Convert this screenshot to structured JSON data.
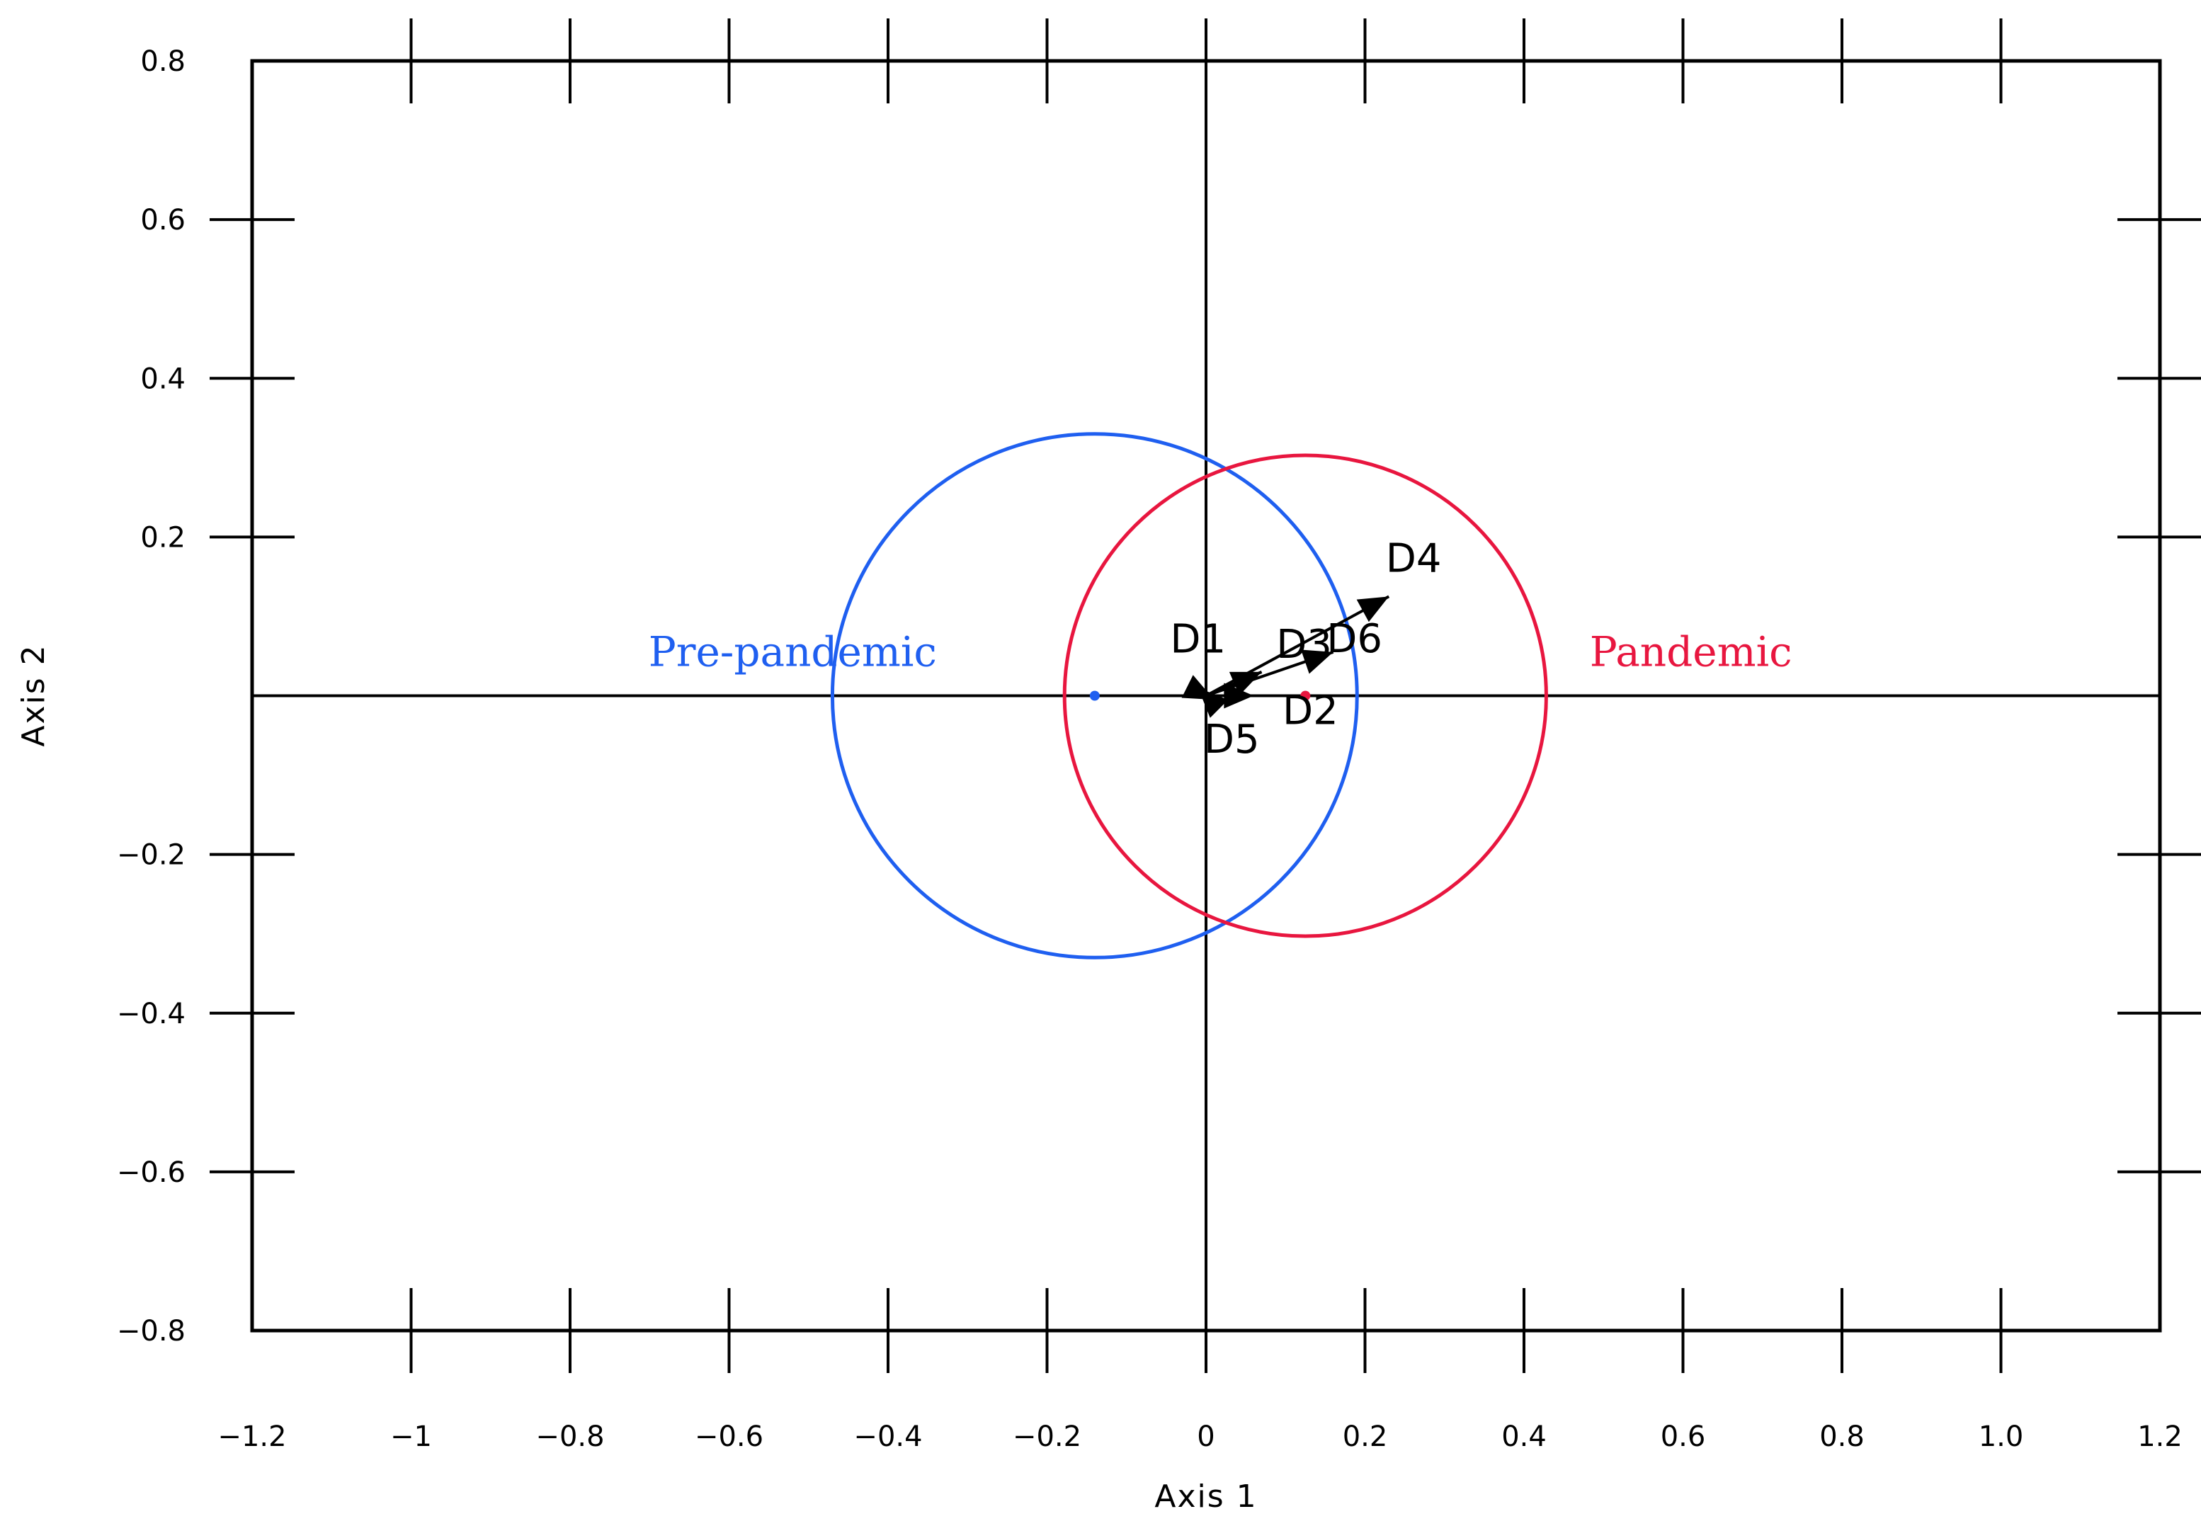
{
  "chart_data": {
    "type": "scatter",
    "xlabel": "Axis  1",
    "ylabel": "Axis  2",
    "xlim": [
      -1.2,
      1.2
    ],
    "ylim": [
      -0.8,
      0.8
    ],
    "x_ticks": [
      -1.2,
      -1,
      -0.8,
      -0.6,
      -0.4,
      -0.2,
      0,
      0.2,
      0.4,
      0.6,
      0.8,
      1.0,
      1.2
    ],
    "x_tick_labels": [
      "−1.2",
      "−1",
      "−0.8",
      "−0.6",
      "−0.4",
      "−0.2",
      "0",
      "0.2",
      "0.4",
      "0.6",
      "0.8",
      "1.0",
      "1.2"
    ],
    "y_ticks": [
      0.8,
      0.6,
      0.4,
      0.2,
      -0.2,
      -0.4,
      -0.6,
      -0.8
    ],
    "y_tick_labels": [
      "0.8",
      "0.6",
      "0.4",
      "0.2",
      "−0.2",
      "−0.4",
      "−0.6",
      "−0.8"
    ],
    "groups": [
      {
        "label": "Pre-pandemic",
        "color": "#1f5ff0",
        "centroid": [
          -0.14,
          0.0
        ],
        "radius": 0.33
      },
      {
        "label": "Pandemic",
        "color": "#e8163f",
        "centroid": [
          0.125,
          0.0
        ],
        "radius": 0.303
      }
    ],
    "vectors": [
      {
        "label": "D1",
        "x": -0.01,
        "y": 0.01
      },
      {
        "label": "D2",
        "x": 0.06,
        "y": 0.0
      },
      {
        "label": "D3",
        "x": 0.07,
        "y": 0.03
      },
      {
        "label": "D4",
        "x": 0.23,
        "y": 0.125
      },
      {
        "label": "D5",
        "x": 0.01,
        "y": -0.005
      },
      {
        "label": "D6",
        "x": 0.16,
        "y": 0.055
      }
    ],
    "grid": false
  }
}
